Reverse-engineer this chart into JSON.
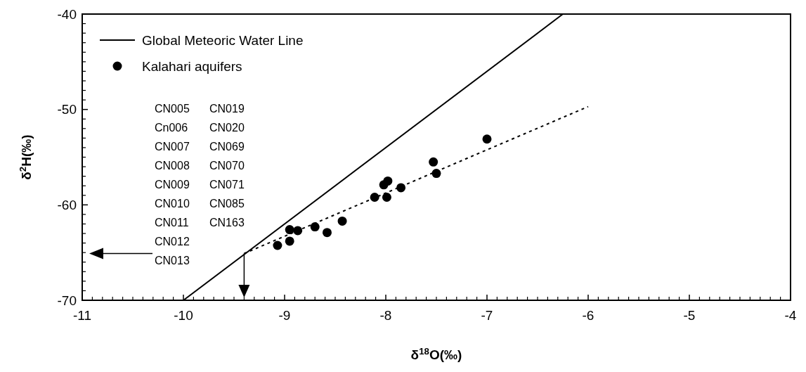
{
  "chart_data": {
    "type": "scatter",
    "xlabel": "δ$^{18}$O(‰)",
    "ylabel": "δ$^{2}$H(‰)",
    "xlim": [
      -11,
      -4
    ],
    "xticks": [
      -11,
      -10,
      -9,
      -8,
      -7,
      -6,
      -5,
      -4
    ],
    "ylim": [
      -70,
      -40
    ],
    "yticks": [
      -70,
      -60,
      -50,
      -40
    ],
    "grid": false,
    "legend": "top left",
    "marker": "circle",
    "series": [
      {
        "name": "Global Meteoric Water Line",
        "type": "line",
        "color": "#000000",
        "line_style": "solid",
        "marker": "none",
        "x": [
          -10,
          -6.25
        ],
        "values": [
          -70,
          -40
        ]
      },
      {
        "name": "Kalahari aquifers",
        "color": "#000000",
        "x": [
          -9.07,
          -8.95,
          -8.95,
          -8.87,
          -8.7,
          -8.58,
          -8.43,
          -8.11,
          -7.99,
          -8.02,
          -7.98,
          -7.85,
          -7.53,
          -7.5,
          -7.0
        ],
        "values": [
          -64.25,
          -63.8,
          -62.6,
          -62.7,
          -62.3,
          -62.9,
          -61.7,
          -59.2,
          -59.2,
          -57.9,
          -57.5,
          -58.2,
          -55.5,
          -56.7,
          -53.1
        ]
      },
      {
        "type": "line",
        "color": "#000000",
        "line_style": "dotted",
        "marker": "none",
        "x": [
          -9.4,
          -6.0
        ],
        "values": [
          -65.1,
          -49.7
        ]
      }
    ],
    "annotations": [
      "CN005",
      "Cn006",
      "CN007",
      "CN008",
      "CN009",
      "CN010",
      "CN011",
      "CN012",
      "CN013",
      "CN019",
      "CN020",
      "CN069",
      "CN070",
      "CN071",
      "CN085",
      "CN163"
    ]
  }
}
